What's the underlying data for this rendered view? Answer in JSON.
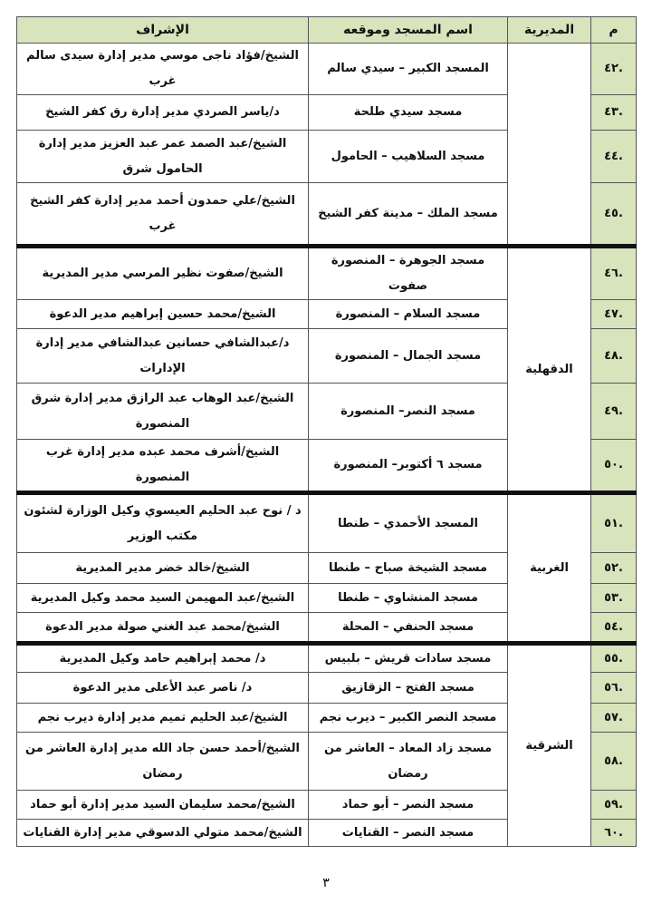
{
  "table": {
    "headers": {
      "number": "م",
      "directorate": "المديرية",
      "mosque": "اسم المسجد وموقعه",
      "supervision": "الإشراف"
    },
    "groups": [
      {
        "directorate": "",
        "rows": [
          {
            "number": ".٤٢",
            "mosque": "المسجد الكبير – سيدي سالم",
            "supervision": "الشيخ/فؤاد ناجى موسي مدير إدارة سيدى سالم غرب"
          },
          {
            "number": ".٤٣",
            "mosque": "مسجد سيدي طلحة",
            "supervision": "د/ياسر الصردي مدير إدارة رق كفر الشيخ"
          },
          {
            "number": ".٤٤",
            "mosque": "مسجد السلاهيب – الحامول",
            "supervision": "الشيخ/عبد الصمد عمر عبد العزيز مدير إدارة الحامول شرق"
          },
          {
            "number": ".٤٥",
            "mosque": "مسجد الملك – مدينة كفر الشيخ",
            "supervision": "الشيخ/علي حمدون أحمد مدير إدارة كفر الشيخ غرب"
          }
        ]
      },
      {
        "directorate": "الدقهلية",
        "rows": [
          {
            "number": ".٤٦",
            "mosque": "مسجد الجوهرة – المنصورة صفوت",
            "supervision": "الشيخ/صفوت نظير المرسي مدير المديرية"
          },
          {
            "number": ".٤٧",
            "mosque": "مسجد السلام – المنصورة",
            "supervision": "الشيخ/محمد حسين إبراهيم مدير الدعوة"
          },
          {
            "number": ".٤٨",
            "mosque": "مسجد الجمال – المنصورة",
            "supervision": "د/عبدالشافي حسانين عبدالشافي مدير إدارة الإدارات"
          },
          {
            "number": ".٤٩",
            "mosque": "مسجد النصر– المنصورة",
            "supervision": "الشيخ/عبد الوهاب عبد الرازق مدير إدارة شرق المنصورة"
          },
          {
            "number": ".٥٠",
            "mosque": "مسجد ٦ أكتوبر– المنصورة",
            "supervision": "الشيخ/أشرف محمد عبده مدير إدارة غرب المنصورة"
          }
        ]
      },
      {
        "directorate": "الغربية",
        "rows": [
          {
            "number": ".٥١",
            "mosque": "المسجد الأحمدي – طنطا",
            "supervision": "د / نوح عبد الحليم العيسوي وكيل الوزارة لشئون مكتب الوزير"
          },
          {
            "number": ".٥٢",
            "mosque": "مسجد الشيخة صباح – طنطا",
            "supervision": "الشيخ/خالد خضر مدير المديرية"
          },
          {
            "number": ".٥٣",
            "mosque": "مسجد المنشاوي – طنطا",
            "supervision": "الشيخ/عبد المهيمن السيد محمد وكيل المديرية"
          },
          {
            "number": ".٥٤",
            "mosque": "مسجد الحنفي – المحلة",
            "supervision": "الشيخ/محمد عبد الغني صولة مدير الدعوة"
          }
        ]
      },
      {
        "directorate": "الشرقية",
        "rows": [
          {
            "number": ".٥٥",
            "mosque": "مسجد سادات قريش – بلبيس",
            "supervision": "د/ محمد إبراهيم حامد وكيل المديرية"
          },
          {
            "number": ".٥٦",
            "mosque": "مسجد الفتح – الزقازيق",
            "supervision": "د/ ناصر عبد الأعلى مدير الدعوة"
          },
          {
            "number": ".٥٧",
            "mosque": "مسجد النصر الكبير – ديرب نجم",
            "supervision": "الشيخ/عبد الحليم تميم مدير إدارة ديرب نجم"
          },
          {
            "number": ".٥٨",
            "mosque": "مسجد زاد المعاد – العاشر من رمضان",
            "supervision": "الشيخ/أحمد حسن جاد الله مدير إدارة العاشر من رمضان"
          },
          {
            "number": ".٥٩",
            "mosque": "مسجد النصر – أبو حماد",
            "supervision": "الشيخ/محمد سليمان السيد مدير إدارة أبو حماد"
          },
          {
            "number": ".٦٠",
            "mosque": "مسجد النصر – القنايات",
            "supervision": "الشيخ/محمد متولي الدسوقي مدير إدارة القنايات"
          }
        ]
      }
    ]
  },
  "page_number": "٣"
}
